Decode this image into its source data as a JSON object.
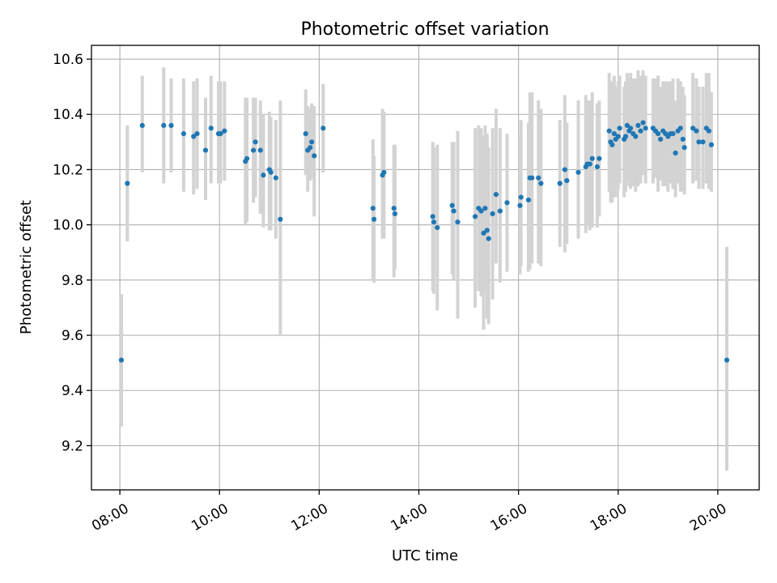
{
  "chart_data": {
    "type": "scatter",
    "title": "Photometric offset variation",
    "xlabel": "UTC time",
    "ylabel": "Photometric offset",
    "x_tick_labels": [
      "08:00",
      "10:00",
      "12:00",
      "14:00",
      "16:00",
      "18:00",
      "20:00"
    ],
    "x_tick_hours": [
      8,
      10,
      12,
      14,
      16,
      18,
      20
    ],
    "y_tick_labels": [
      "9.2",
      "9.4",
      "9.6",
      "9.8",
      "10.0",
      "10.2",
      "10.4",
      "10.6"
    ],
    "y_tick_values": [
      9.2,
      9.4,
      9.6,
      9.8,
      10.0,
      10.2,
      10.4,
      10.6
    ],
    "xlim_hours": [
      7.43,
      20.83
    ],
    "ylim": [
      9.04,
      10.65
    ],
    "grid": true,
    "colors": {
      "point": "#1f77b4",
      "errorbar": "#d3d3d3"
    },
    "series": [
      {
        "x_hours": [
          8.03,
          8.15,
          8.45,
          8.88,
          9.03,
          9.28,
          9.48,
          9.55,
          9.72,
          9.83,
          9.98,
          10.02,
          10.1,
          10.52,
          10.55,
          10.68,
          10.72,
          10.82,
          10.88,
          11.0,
          11.03,
          11.13,
          11.22,
          11.73,
          11.77,
          11.82,
          11.85,
          11.9,
          12.08,
          13.08,
          13.1,
          13.27,
          13.3,
          13.5,
          13.52,
          14.28,
          14.3,
          14.37,
          14.67,
          14.7,
          14.78,
          15.13,
          15.2,
          15.25,
          15.3,
          15.33,
          15.37,
          15.4,
          15.48,
          15.55,
          15.63,
          15.77,
          16.03,
          16.05,
          16.23,
          16.27,
          16.2,
          16.4,
          16.45,
          16.83,
          16.93,
          16.97,
          17.2,
          17.35,
          17.38,
          17.48,
          17.43,
          17.58,
          17.62,
          17.82,
          17.85,
          17.88,
          17.92,
          17.95,
          18.0,
          18.03,
          18.12,
          18.15,
          18.18,
          18.22,
          18.25,
          18.3,
          18.35,
          18.4,
          18.45,
          18.5,
          18.55,
          18.7,
          18.75,
          18.8,
          18.85,
          18.9,
          18.95,
          19.0,
          19.05,
          19.1,
          19.15,
          19.2,
          19.25,
          19.3,
          19.33,
          19.5,
          19.57,
          19.62,
          19.7,
          19.77,
          19.82,
          19.87,
          20.18
        ],
        "y": [
          9.51,
          10.15,
          10.36,
          10.36,
          10.36,
          10.33,
          10.32,
          10.33,
          10.27,
          10.35,
          10.33,
          10.33,
          10.34,
          10.23,
          10.24,
          10.27,
          10.3,
          10.27,
          10.18,
          10.2,
          10.19,
          10.17,
          10.02,
          10.33,
          10.27,
          10.28,
          10.3,
          10.25,
          10.35,
          10.06,
          10.02,
          10.18,
          10.19,
          10.06,
          10.04,
          10.03,
          10.01,
          9.99,
          10.07,
          10.05,
          10.01,
          10.03,
          10.06,
          10.05,
          9.97,
          10.06,
          9.98,
          9.95,
          10.04,
          10.11,
          10.05,
          10.08,
          10.07,
          10.1,
          10.17,
          10.17,
          10.09,
          10.17,
          10.15,
          10.15,
          10.2,
          10.16,
          10.19,
          10.21,
          10.22,
          10.24,
          10.22,
          10.21,
          10.24,
          10.34,
          10.3,
          10.29,
          10.33,
          10.31,
          10.32,
          10.35,
          10.31,
          10.32,
          10.36,
          10.34,
          10.35,
          10.33,
          10.32,
          10.36,
          10.34,
          10.37,
          10.35,
          10.35,
          10.34,
          10.33,
          10.31,
          10.34,
          10.33,
          10.32,
          10.33,
          10.33,
          10.26,
          10.34,
          10.35,
          10.31,
          10.28,
          10.35,
          10.34,
          10.3,
          10.3,
          10.35,
          10.34,
          10.29,
          9.51
        ],
        "err_low": [
          9.27,
          9.94,
          10.19,
          10.15,
          10.19,
          10.12,
          10.11,
          10.13,
          10.09,
          10.15,
          10.15,
          10.15,
          10.16,
          10.0,
          10.01,
          10.08,
          10.1,
          10.04,
          9.99,
          9.98,
          9.98,
          9.95,
          9.6,
          10.18,
          10.12,
          10.16,
          10.17,
          10.03,
          10.19,
          9.8,
          9.79,
          9.95,
          9.95,
          9.81,
          9.84,
          9.76,
          9.75,
          9.69,
          9.82,
          9.8,
          9.66,
          9.7,
          9.76,
          9.74,
          9.62,
          9.76,
          9.66,
          9.64,
          9.73,
          9.86,
          9.79,
          9.83,
          9.82,
          9.85,
          9.84,
          9.86,
          9.83,
          9.86,
          9.85,
          9.92,
          9.9,
          9.93,
          9.95,
          9.97,
          10.0,
          9.99,
          9.98,
          9.99,
          10.03,
          10.12,
          10.08,
          10.08,
          10.1,
          10.1,
          10.13,
          10.15,
          10.1,
          10.12,
          10.16,
          10.14,
          10.13,
          10.14,
          10.12,
          10.14,
          10.15,
          10.18,
          10.15,
          10.15,
          10.17,
          10.12,
          10.16,
          10.14,
          10.14,
          10.12,
          10.15,
          10.13,
          10.1,
          10.15,
          10.12,
          10.12,
          10.11,
          10.15,
          10.16,
          10.13,
          10.13,
          10.15,
          10.13,
          10.12,
          9.11
        ],
        "err_high": [
          9.75,
          10.36,
          10.54,
          10.57,
          10.53,
          10.53,
          10.52,
          10.53,
          10.46,
          10.54,
          10.52,
          10.52,
          10.52,
          10.46,
          10.46,
          10.46,
          10.46,
          10.45,
          10.4,
          10.41,
          10.39,
          10.38,
          10.45,
          10.49,
          10.43,
          10.42,
          10.44,
          10.43,
          10.51,
          10.31,
          10.25,
          10.42,
          10.41,
          10.29,
          10.29,
          10.3,
          10.28,
          10.29,
          10.3,
          10.3,
          10.34,
          10.35,
          10.36,
          10.35,
          10.32,
          10.36,
          10.33,
          10.28,
          10.35,
          10.42,
          10.35,
          10.33,
          10.32,
          10.38,
          10.48,
          10.48,
          10.37,
          10.45,
          10.42,
          10.38,
          10.47,
          10.37,
          10.45,
          10.47,
          10.45,
          10.48,
          10.45,
          10.44,
          10.45,
          10.55,
          10.5,
          10.52,
          10.54,
          10.5,
          10.52,
          10.54,
          10.5,
          10.52,
          10.55,
          10.53,
          10.55,
          10.53,
          10.53,
          10.56,
          10.54,
          10.56,
          10.54,
          10.53,
          10.53,
          10.54,
          10.5,
          10.52,
          10.52,
          10.52,
          10.52,
          10.53,
          10.45,
          10.53,
          10.52,
          10.5,
          10.47,
          10.55,
          10.53,
          10.5,
          10.5,
          10.55,
          10.55,
          10.48,
          9.92
        ]
      }
    ]
  }
}
